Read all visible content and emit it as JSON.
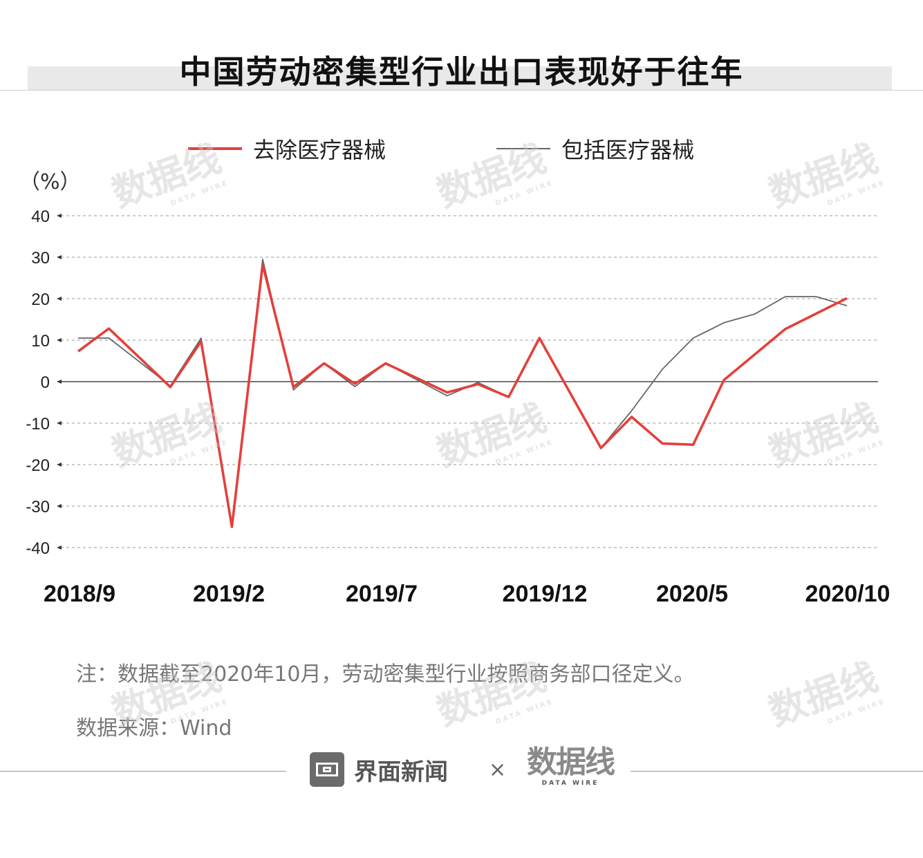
{
  "title": "中国劳动密集型行业出口表现好于往年",
  "unit_label": "（%）",
  "note": "注：数据截至2020年10月，劳动密集型行业按照商务部口径定义。",
  "source": "数据来源：Wind",
  "footer": {
    "brand_name": "界面新闻",
    "separator": "×",
    "partner_logo_text": "数据线",
    "partner_logo_sub": "DATA WIRE"
  },
  "watermark": {
    "text": "数据线",
    "sub": "DATA WIRE"
  },
  "colors": {
    "excl": "#e3403c",
    "incl": "#666666",
    "grid": "#999999"
  },
  "chart_data": {
    "type": "line",
    "x": [
      "2018/9",
      "2018/10",
      "2018/11",
      "2018/12",
      "2019/1",
      "2019/2",
      "2019/3",
      "2019/4",
      "2019/5",
      "2019/6",
      "2019/7",
      "2019/8",
      "2019/9",
      "2019/10",
      "2019/11",
      "2019/12",
      "2020/1",
      "2020/2",
      "2020/3",
      "2020/4",
      "2020/5",
      "2020/6",
      "2020/7",
      "2020/8",
      "2020/9",
      "2020/10"
    ],
    "xticks": [
      "2018/9",
      "2019/2",
      "2019/7",
      "2019/12",
      "2020/5",
      "2020/10"
    ],
    "yticks": [
      40,
      30,
      20,
      10,
      0,
      -10,
      -20,
      -30,
      -40
    ],
    "ylim": [
      -40,
      40
    ],
    "series": [
      {
        "name": "去除医疗器械",
        "color": "#e3403c",
        "values": [
          7.3,
          12.8,
          null,
          -1.3,
          9.7,
          -35.0,
          28.2,
          -1.3,
          4.4,
          -0.5,
          4.4,
          null,
          -2.6,
          -0.6,
          -3.7,
          10.5,
          null,
          -16.0,
          -8.5,
          -14.9,
          -15.2,
          0.4,
          null,
          12.7,
          null,
          20.1
        ]
      },
      {
        "name": "包括医疗器械",
        "color": "#666666",
        "values": [
          10.5,
          10.5,
          null,
          -1.0,
          10.5,
          -35.0,
          29.5,
          -2.0,
          4.4,
          -1.2,
          4.4,
          null,
          -3.4,
          -0.2,
          -3.7,
          10.5,
          null,
          -16.0,
          -7.0,
          3.0,
          10.5,
          14.2,
          16.3,
          20.5,
          20.5,
          18.3
        ]
      }
    ],
    "xlabel": "",
    "ylabel": "（%）",
    "grid": true,
    "legend": "top"
  }
}
